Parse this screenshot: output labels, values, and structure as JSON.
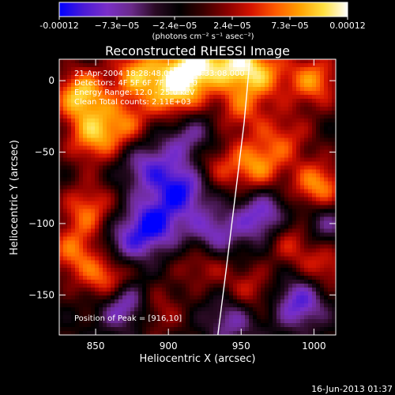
{
  "colorbar": {
    "tick_labels": [
      "-0.00012",
      "−7.3e−05",
      "−2.4e−05",
      "2.4e−05",
      "7.3e−05",
      "0.00012"
    ],
    "units": "(photons cm⁻² s⁻¹ asec⁻²)",
    "colors": [
      "#0000ff",
      "#4a1ad6",
      "#7a2fc8",
      "#6a2a8a",
      "#2a0a24",
      "#000000",
      "#3a0000",
      "#8a0000",
      "#d61400",
      "#ff5a00",
      "#ffa000",
      "#ffe040",
      "#ffffff"
    ]
  },
  "footer": {
    "timestamp": "16-Jun-2013 01:37"
  },
  "chart_data": {
    "type": "heatmap",
    "title": "Reconstructed RHESSI Image",
    "xlabel": "Heliocentric X (arcsec)",
    "ylabel": "Heliocentric Y (arcsec)",
    "xlim": [
      825,
      1015
    ],
    "ylim": [
      -178,
      15
    ],
    "x_ticks": [
      850,
      900,
      950,
      1000
    ],
    "y_ticks": [
      0,
      -50,
      -100,
      -150
    ],
    "x_tick_labels": [
      "850",
      "900",
      "950",
      "1000"
    ],
    "y_tick_labels": [
      "0",
      "−50",
      "−100",
      "−150"
    ],
    "value_range": [
      -0.00012,
      0.00012
    ],
    "annotations": [
      "21-Apr-2004 18:28:48.000 to 18:33:08.000",
      "Detectors: 4F 5F 6F 7F 8F  Att 0",
      "Energy Range: 12.0 - 25.0 keV",
      "Clean    Total counts: 2.11E+03"
    ],
    "peak_label": "Position of Peak = [916,10]",
    "peak": [
      916,
      10
    ],
    "limb_curve": [
      [
        956,
        15
      ],
      [
        952,
        -30
      ],
      [
        946,
        -80
      ],
      [
        940,
        -130
      ],
      [
        934,
        -178
      ]
    ],
    "blobs": [
      {
        "x": 840,
        "y": -10,
        "v": 0.9
      },
      {
        "x": 848,
        "y": -40,
        "v": 0.7
      },
      {
        "x": 880,
        "y": 5,
        "v": 0.8
      },
      {
        "x": 916,
        "y": 10,
        "v": 1.0
      },
      {
        "x": 905,
        "y": -10,
        "v": 0.75
      },
      {
        "x": 945,
        "y": 12,
        "v": 0.8
      },
      {
        "x": 965,
        "y": 5,
        "v": 0.6
      },
      {
        "x": 1000,
        "y": 0,
        "v": 0.7
      },
      {
        "x": 870,
        "y": -30,
        "v": 0.55
      },
      {
        "x": 960,
        "y": -60,
        "v": 0.7
      },
      {
        "x": 1003,
        "y": -75,
        "v": 0.8
      },
      {
        "x": 985,
        "y": -110,
        "v": 0.55
      },
      {
        "x": 845,
        "y": -90,
        "v": 0.6
      },
      {
        "x": 860,
        "y": -140,
        "v": 0.85
      },
      {
        "x": 835,
        "y": -120,
        "v": 0.6
      },
      {
        "x": 925,
        "y": -125,
        "v": 0.55
      },
      {
        "x": 955,
        "y": -150,
        "v": 0.55
      },
      {
        "x": 1008,
        "y": -130,
        "v": 0.5
      },
      {
        "x": 950,
        "y": -20,
        "v": 0.5
      },
      {
        "x": 930,
        "y": -60,
        "v": 0.45
      },
      {
        "x": 890,
        "y": -160,
        "v": 0.45
      },
      {
        "x": 980,
        "y": -40,
        "v": 0.45
      },
      {
        "x": 910,
        "y": -75,
        "v": -0.8
      },
      {
        "x": 890,
        "y": -100,
        "v": -0.8
      },
      {
        "x": 870,
        "y": -155,
        "v": -0.9
      },
      {
        "x": 930,
        "y": -110,
        "v": -0.7
      },
      {
        "x": 965,
        "y": -95,
        "v": -0.7
      },
      {
        "x": 990,
        "y": -155,
        "v": -0.7
      },
      {
        "x": 885,
        "y": -60,
        "v": -0.55
      },
      {
        "x": 945,
        "y": -165,
        "v": -0.6
      },
      {
        "x": 1005,
        "y": -100,
        "v": -0.55
      },
      {
        "x": 870,
        "y": -115,
        "v": -0.5
      },
      {
        "x": 915,
        "y": -40,
        "v": -0.5
      }
    ]
  }
}
